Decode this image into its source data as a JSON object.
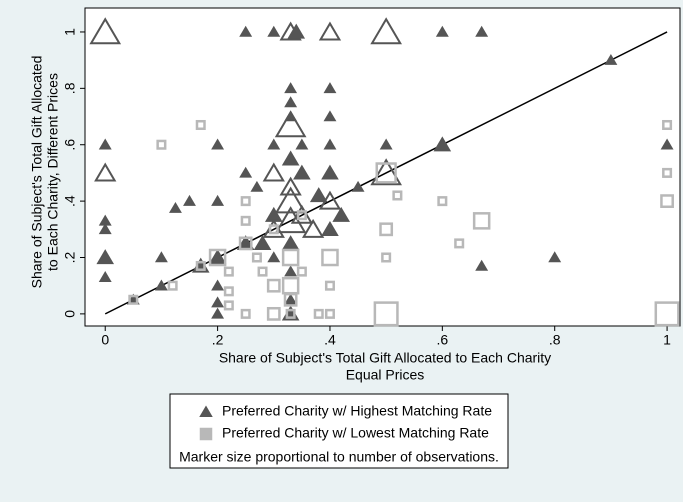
{
  "chart_data": {
    "type": "scatter",
    "ylabel": [
      "Share of Subject's Total Gift Allocated",
      "to Each Charity, Different Prices"
    ],
    "xlabel": [
      "Share of Subject's Total Gift Allocated to Each Charity",
      "Equal Prices"
    ],
    "note": "Marker size proportional to number of observations.",
    "xlim": [
      -0.036,
      1.023
    ],
    "ylim": [
      -0.043,
      1.085
    ],
    "xticks": [
      0,
      {
        "value": 0.2,
        "label": ".2"
      },
      {
        "value": 0.4,
        "label": ".4"
      },
      {
        "value": 0.6,
        "label": ".6"
      },
      {
        "value": 0.8,
        "label": ".8"
      },
      1
    ],
    "yticks": [
      0,
      {
        "value": 0.2,
        "label": ".2"
      },
      {
        "value": 0.4,
        "label": ".4"
      },
      {
        "value": 0.6,
        "label": ".6"
      },
      {
        "value": 0.8,
        "label": ".8"
      },
      1
    ],
    "reference_line": {
      "x": [
        0,
        1
      ],
      "y": [
        0,
        1
      ]
    },
    "series": [
      {
        "name": "Preferred Charity w/ Highest Matching Rate",
        "color": "#555555",
        "marker": "triangle",
        "x": [
          0,
          0.25,
          0.3,
          0.33,
          0.34,
          0.4,
          0.5,
          0.6,
          0.67,
          0.9,
          0,
          0,
          0,
          0,
          0,
          0,
          0.05,
          0.1,
          0.1,
          0.125,
          0.15,
          0.17,
          0.2,
          0.2,
          0.2,
          0.2,
          0.2,
          0.2,
          0.25,
          0.25,
          0.27,
          0.3,
          0.3,
          0.3,
          0.3,
          0.3,
          0.33,
          0.33,
          0.33,
          0.33,
          0.33,
          0.33,
          0.33,
          0.33,
          0.33,
          0.33,
          0.33,
          0.33,
          0.35,
          0.35,
          0.35,
          0.37,
          0.4,
          0.4,
          0.4,
          0.4,
          0.4,
          0.4,
          0.42,
          0.45,
          0.5,
          0.5,
          0.6,
          0.67,
          0.8,
          1,
          0.38,
          0.28
        ],
        "y": [
          1,
          1,
          1,
          1,
          1,
          1,
          1,
          1,
          1,
          0.9,
          0.6,
          0.5,
          0.33,
          0.3,
          0.2,
          0.13,
          0.05,
          0.2,
          0.1,
          0.375,
          0.4,
          0.17,
          0.6,
          0.4,
          0.2,
          0.1,
          0.04,
          0,
          0.5,
          0.25,
          0.45,
          0.6,
          0.5,
          0.3,
          0.2,
          0.35,
          0.8,
          0.75,
          0.7,
          0.67,
          0.55,
          0.45,
          0.4,
          0.33,
          0.25,
          0.15,
          0.05,
          0,
          0.6,
          0.5,
          0.35,
          0.3,
          0.8,
          0.7,
          0.6,
          0.5,
          0.4,
          0.3,
          0.35,
          0.45,
          0.5,
          0.6,
          0.6,
          0.17,
          0.2,
          0.6,
          0.42,
          0.25
        ],
        "sizes": [
          3,
          1,
          1,
          2,
          1.5,
          2,
          3,
          1,
          1,
          1,
          1,
          2,
          1,
          1,
          1.5,
          1,
          1,
          1,
          1,
          1,
          1,
          1.5,
          1,
          1,
          1.5,
          1,
          1,
          1,
          1,
          1.5,
          1,
          1,
          2,
          2,
          1,
          1.5,
          1,
          1,
          1,
          3,
          1.5,
          2,
          3,
          3,
          1.5,
          1,
          1,
          1.5,
          1,
          1.5,
          2,
          2,
          1,
          1,
          1,
          1.5,
          2,
          1.5,
          1.5,
          1,
          3,
          1,
          1.5,
          1,
          1,
          1,
          1.5,
          1.5
        ]
      },
      {
        "name": "Preferred Charity w/ Lowest Matching Rate",
        "color": "#b8b8b8",
        "marker": "square",
        "x": [
          0.17,
          0.1,
          0.05,
          0.12,
          0.17,
          0.2,
          0.22,
          0.22,
          0.22,
          0.25,
          0.25,
          0.25,
          0.27,
          0.28,
          0.3,
          0.3,
          0.33,
          0.33,
          0.33,
          0.33,
          0.35,
          0.38,
          0.4,
          0.4,
          0.4,
          0.25,
          0.5,
          0.52,
          0.5,
          0.5,
          0.5,
          0.6,
          0.63,
          0.67,
          1,
          1,
          1,
          1,
          0.3,
          0.35
        ],
        "y": [
          0.67,
          0.6,
          0.05,
          0.1,
          0.17,
          0.2,
          0.15,
          0.08,
          0.03,
          0.25,
          0.33,
          0.4,
          0.2,
          0.15,
          0.1,
          0,
          0.1,
          0.05,
          0,
          0.2,
          0.15,
          0,
          0.2,
          0.1,
          0,
          0,
          0.5,
          0.42,
          0.3,
          0.2,
          0,
          0.4,
          0.25,
          0.33,
          0.67,
          0.5,
          0.4,
          0,
          0.3,
          0.35
        ],
        "sizes": [
          1,
          1,
          1,
          1,
          1,
          2,
          1,
          1,
          1,
          1.5,
          1,
          1,
          1,
          1,
          1.5,
          1.5,
          2,
          1.5,
          1,
          2,
          1,
          1,
          2,
          1,
          1,
          1,
          2.5,
          1,
          1.5,
          1,
          3,
          1,
          1,
          2,
          1,
          1,
          1.5,
          3,
          1,
          1
        ]
      }
    ]
  }
}
